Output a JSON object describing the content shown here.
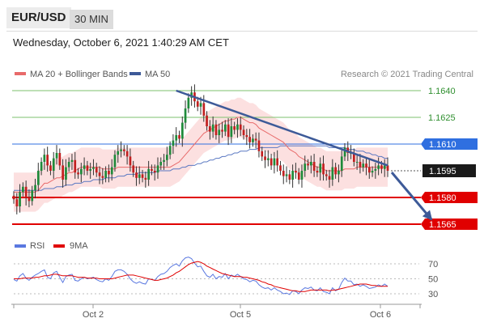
{
  "header": {
    "symbol": "EUR/USD",
    "timeframe": "30 MIN",
    "timestamp": "Wednesday, October 6, 2021 1:40:29 AM CET"
  },
  "legend": {
    "ma20_label": "MA 20 + Bollinger Bands",
    "ma50_label": "MA 50",
    "copyright": "Research © 2021 Trading Central",
    "rsi_label": "RSI",
    "ma9_label": "9MA"
  },
  "colors": {
    "candle_up": "#1f8a3a",
    "candle_down": "#c21f1f",
    "ma20": "#e86a6a",
    "ma50": "#5a78c2",
    "bollinger_fill": "#fbdada",
    "trendline": "#3d5a98",
    "support": "#e00000",
    "resistance_blue": "#2f6fe0",
    "resistance_green": "#7ec26e",
    "last_price_badge": "#1a1a1a"
  },
  "chart_data": [
    {
      "type": "candlestick",
      "title": "EUR/USD 30 MIN",
      "ylim": [
        1.1555,
        1.165
      ],
      "x_ticks": [
        "Oct 2",
        "Oct 5",
        "Oct 6"
      ],
      "levels": [
        {
          "value": 1.164,
          "label": "1.1640",
          "style": "resistance",
          "color": "#7ec26e"
        },
        {
          "value": 1.1625,
          "label": "1.1625",
          "style": "resistance",
          "color": "#7ec26e"
        },
        {
          "value": 1.161,
          "label": "1.1610",
          "style": "resistance",
          "color": "#2f6fe0"
        },
        {
          "value": 1.1595,
          "label": "1.1595",
          "style": "last",
          "color": "#1a1a1a"
        },
        {
          "value": 1.158,
          "label": "1.1580",
          "style": "support",
          "color": "#e00000"
        },
        {
          "value": 1.1565,
          "label": "1.1565",
          "style": "support",
          "color": "#e00000"
        }
      ],
      "close": [
        1.1579,
        1.1575,
        1.1583,
        1.1586,
        1.158,
        1.1578,
        1.1584,
        1.1587,
        1.1595,
        1.16,
        1.1604,
        1.1598,
        1.1595,
        1.1602,
        1.1605,
        1.1598,
        1.159,
        1.1597,
        1.16,
        1.1601,
        1.1594,
        1.1593,
        1.1596,
        1.1598,
        1.1595,
        1.1596,
        1.1597,
        1.1594,
        1.1592,
        1.1591,
        1.1595,
        1.1593,
        1.1597,
        1.1604,
        1.1606,
        1.1607,
        1.1606,
        1.1603,
        1.1598,
        1.1594,
        1.1591,
        1.1593,
        1.1591,
        1.159,
        1.1596,
        1.1595,
        1.1594,
        1.1598,
        1.16,
        1.1601,
        1.1604,
        1.1609,
        1.1612,
        1.1615,
        1.1613,
        1.1622,
        1.163,
        1.1636,
        1.1639,
        1.1634,
        1.1631,
        1.1633,
        1.1626,
        1.162,
        1.1617,
        1.1621,
        1.1615,
        1.1618,
        1.1617,
        1.1621,
        1.1614,
        1.162,
        1.1618,
        1.1621,
        1.1618,
        1.1615,
        1.1614,
        1.1611,
        1.1613,
        1.1612,
        1.1606,
        1.1603,
        1.1601,
        1.1602,
        1.1598,
        1.1602,
        1.1598,
        1.1595,
        1.1592,
        1.1593,
        1.159,
        1.1595,
        1.1594,
        1.159,
        1.1595,
        1.1599,
        1.1598,
        1.16,
        1.1595,
        1.1594,
        1.1599,
        1.1593,
        1.1592,
        1.159,
        1.1597,
        1.1593,
        1.1595,
        1.1603,
        1.1608,
        1.1605,
        1.1605,
        1.16,
        1.16,
        1.1597,
        1.1599,
        1.1597,
        1.1594,
        1.1595,
        1.1596,
        1.1598,
        1.1596,
        1.1598,
        1.1595
      ],
      "ma20": [
        1.1583,
        1.1583,
        1.1583,
        1.1583,
        1.1583,
        1.1583,
        1.1583,
        1.1583,
        1.1584,
        1.1586,
        1.1588,
        1.1588,
        1.1589,
        1.159,
        1.1591,
        1.1591,
        1.1592,
        1.1593,
        1.1594,
        1.1594,
        1.1595,
        1.1596,
        1.1597,
        1.1597,
        1.1597,
        1.1597,
        1.1597,
        1.1597,
        1.1597,
        1.1596,
        1.1596,
        1.1596,
        1.1596,
        1.1596,
        1.1597,
        1.1597,
        1.1597,
        1.1597,
        1.1597,
        1.1597,
        1.1597,
        1.1597,
        1.1597,
        1.1597,
        1.1597,
        1.1597,
        1.1597,
        1.1597,
        1.1597,
        1.1597,
        1.1597,
        1.1597,
        1.1598,
        1.1599,
        1.16,
        1.1602,
        1.1604,
        1.1606,
        1.1608,
        1.161,
        1.1612,
        1.1614,
        1.1616,
        1.1617,
        1.1618,
        1.1619,
        1.162,
        1.1621,
        1.1622,
        1.1623,
        1.1623,
        1.1624,
        1.1624,
        1.1625,
        1.1625,
        1.1624,
        1.1623,
        1.1622,
        1.1622,
        1.1621,
        1.1619,
        1.1618,
        1.1617,
        1.1616,
        1.1615,
        1.1614,
        1.1613,
        1.1612,
        1.1611,
        1.1609,
        1.1607,
        1.1606,
        1.1605,
        1.1603,
        1.1602,
        1.1601,
        1.16,
        1.1599,
        1.1598,
        1.1597,
        1.1597,
        1.1596,
        1.1595,
        1.1595,
        1.1595,
        1.1595,
        1.1595,
        1.1595,
        1.1596,
        1.1596,
        1.1596,
        1.1596,
        1.1597,
        1.1597,
        1.1597,
        1.1597,
        1.1597,
        1.1597,
        1.1597,
        1.1597,
        1.1597,
        1.1597,
        1.1597
      ],
      "ma50": [
        1.1584,
        1.1584,
        1.1584,
        1.1584,
        1.1584,
        1.1584,
        1.1584,
        1.1584,
        1.1584,
        1.1584,
        1.1585,
        1.1585,
        1.1585,
        1.1585,
        1.1586,
        1.1586,
        1.1586,
        1.1587,
        1.1587,
        1.1587,
        1.1588,
        1.1588,
        1.1588,
        1.1589,
        1.1589,
        1.1589,
        1.159,
        1.159,
        1.159,
        1.159,
        1.1591,
        1.1591,
        1.1591,
        1.1591,
        1.1592,
        1.1592,
        1.1592,
        1.1593,
        1.1593,
        1.1593,
        1.1593,
        1.1594,
        1.1594,
        1.1594,
        1.1594,
        1.1594,
        1.1594,
        1.1595,
        1.1595,
        1.1595,
        1.1595,
        1.1595,
        1.1596,
        1.1596,
        1.1596,
        1.1597,
        1.1597,
        1.1598,
        1.1598,
        1.1598,
        1.1599,
        1.1599,
        1.16,
        1.16,
        1.1601,
        1.1601,
        1.1602,
        1.1602,
        1.1603,
        1.1603,
        1.1604,
        1.1604,
        1.1605,
        1.1605,
        1.1606,
        1.1606,
        1.1606,
        1.1607,
        1.1607,
        1.1607,
        1.1608,
        1.1608,
        1.1608,
        1.1608,
        1.1608,
        1.1608,
        1.1608,
        1.1609,
        1.1609,
        1.1609,
        1.1609,
        1.1609,
        1.1609,
        1.1609,
        1.1609,
        1.1609,
        1.1609,
        1.1609,
        1.1609,
        1.1609,
        1.1609,
        1.1609,
        1.1609,
        1.1608,
        1.1608,
        1.1608,
        1.1608,
        1.1608,
        1.1608,
        1.1607,
        1.1607,
        1.1607,
        1.1606,
        1.1606,
        1.1606,
        1.1605,
        1.1605,
        1.1604,
        1.1604,
        1.1603,
        1.1603,
        1.1602,
        1.1602
      ],
      "trendline": [
        {
          "i": 53,
          "value": 1.164
        },
        {
          "i": 122,
          "value": 1.1598
        }
      ],
      "arrow": [
        {
          "i": 122,
          "value": 1.1595
        },
        {
          "i": 127,
          "value": 1.1565
        }
      ]
    },
    {
      "type": "line",
      "title": "RSI",
      "ylim": [
        20,
        85
      ],
      "y_ticks": [
        70,
        50,
        30
      ],
      "series": [
        {
          "name": "RSI",
          "color": "#5a78e0",
          "values": [
            49,
            47,
            54,
            57,
            51,
            48,
            52,
            55,
            57,
            60,
            62,
            52,
            50,
            58,
            60,
            52,
            45,
            53,
            55,
            56,
            48,
            47,
            50,
            52,
            50,
            51,
            52,
            49,
            47,
            46,
            50,
            48,
            53,
            60,
            62,
            62,
            60,
            56,
            50,
            46,
            44,
            46,
            44,
            43,
            50,
            49,
            48,
            53,
            56,
            57,
            60,
            65,
            68,
            70,
            67,
            74,
            78,
            79,
            77,
            71,
            66,
            67,
            60,
            54,
            52,
            56,
            50,
            53,
            52,
            57,
            50,
            55,
            53,
            56,
            53,
            50,
            49,
            46,
            48,
            47,
            42,
            39,
            37,
            38,
            35,
            38,
            35,
            33,
            30,
            31,
            29,
            34,
            33,
            30,
            35,
            38,
            37,
            39,
            35,
            34,
            38,
            33,
            32,
            30,
            38,
            34,
            36,
            45,
            51,
            47,
            47,
            42,
            43,
            40,
            42,
            40,
            37,
            38,
            39,
            42,
            40,
            43,
            40
          ]
        },
        {
          "name": "9MA",
          "color": "#e00000",
          "values": [
            50,
            50,
            50,
            51,
            51,
            51,
            51,
            52,
            52,
            53,
            54,
            54,
            55,
            56,
            56,
            55,
            54,
            54,
            54,
            54,
            53,
            52,
            52,
            52,
            51,
            51,
            51,
            51,
            50,
            50,
            50,
            50,
            50,
            51,
            52,
            53,
            54,
            55,
            55,
            55,
            54,
            53,
            52,
            51,
            50,
            49,
            48,
            48,
            49,
            50,
            51,
            53,
            55,
            58,
            60,
            63,
            66,
            69,
            71,
            72,
            73,
            72,
            70,
            67,
            65,
            63,
            61,
            59,
            57,
            56,
            55,
            54,
            53,
            53,
            53,
            52,
            52,
            51,
            50,
            49,
            48,
            46,
            45,
            43,
            42,
            40,
            39,
            38,
            37,
            36,
            35,
            34,
            34,
            33,
            33,
            33,
            34,
            35,
            35,
            35,
            35,
            35,
            35,
            34,
            35,
            35,
            36,
            37,
            38,
            39,
            40,
            41,
            42,
            43,
            43,
            43,
            42,
            41,
            41,
            40,
            40,
            40,
            40
          ]
        }
      ]
    }
  ]
}
